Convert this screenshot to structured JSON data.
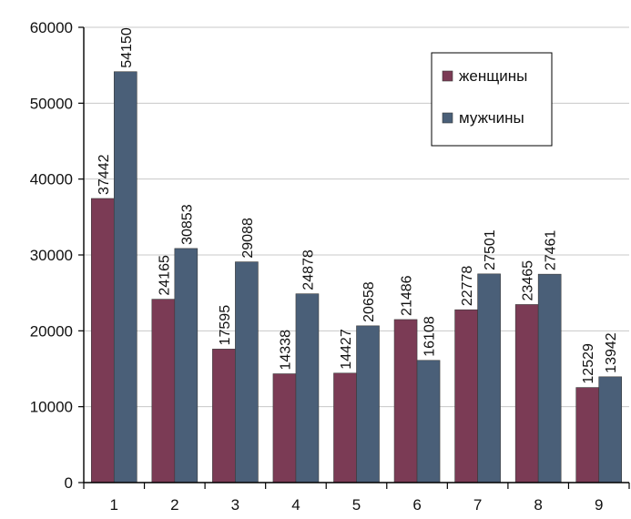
{
  "chart_data": {
    "type": "bar",
    "categories": [
      "1",
      "2",
      "3",
      "4",
      "5",
      "6",
      "7",
      "8",
      "9"
    ],
    "series": [
      {
        "name": "женщины",
        "color": "#7b3b55",
        "values": [
          37442,
          24165,
          17595,
          14338,
          14427,
          21486,
          22778,
          23465,
          12529
        ]
      },
      {
        "name": "мужчины",
        "color": "#4a5f78",
        "values": [
          54150,
          30853,
          29088,
          24878,
          20658,
          16108,
          27501,
          27461,
          13942
        ]
      }
    ],
    "ylim": [
      0,
      60000
    ],
    "yticks": [
      0,
      10000,
      20000,
      30000,
      40000,
      50000,
      60000
    ],
    "xlabel": "",
    "ylabel": "",
    "title": "",
    "grid": true,
    "legend_position": "top-right",
    "data_labels": true
  }
}
